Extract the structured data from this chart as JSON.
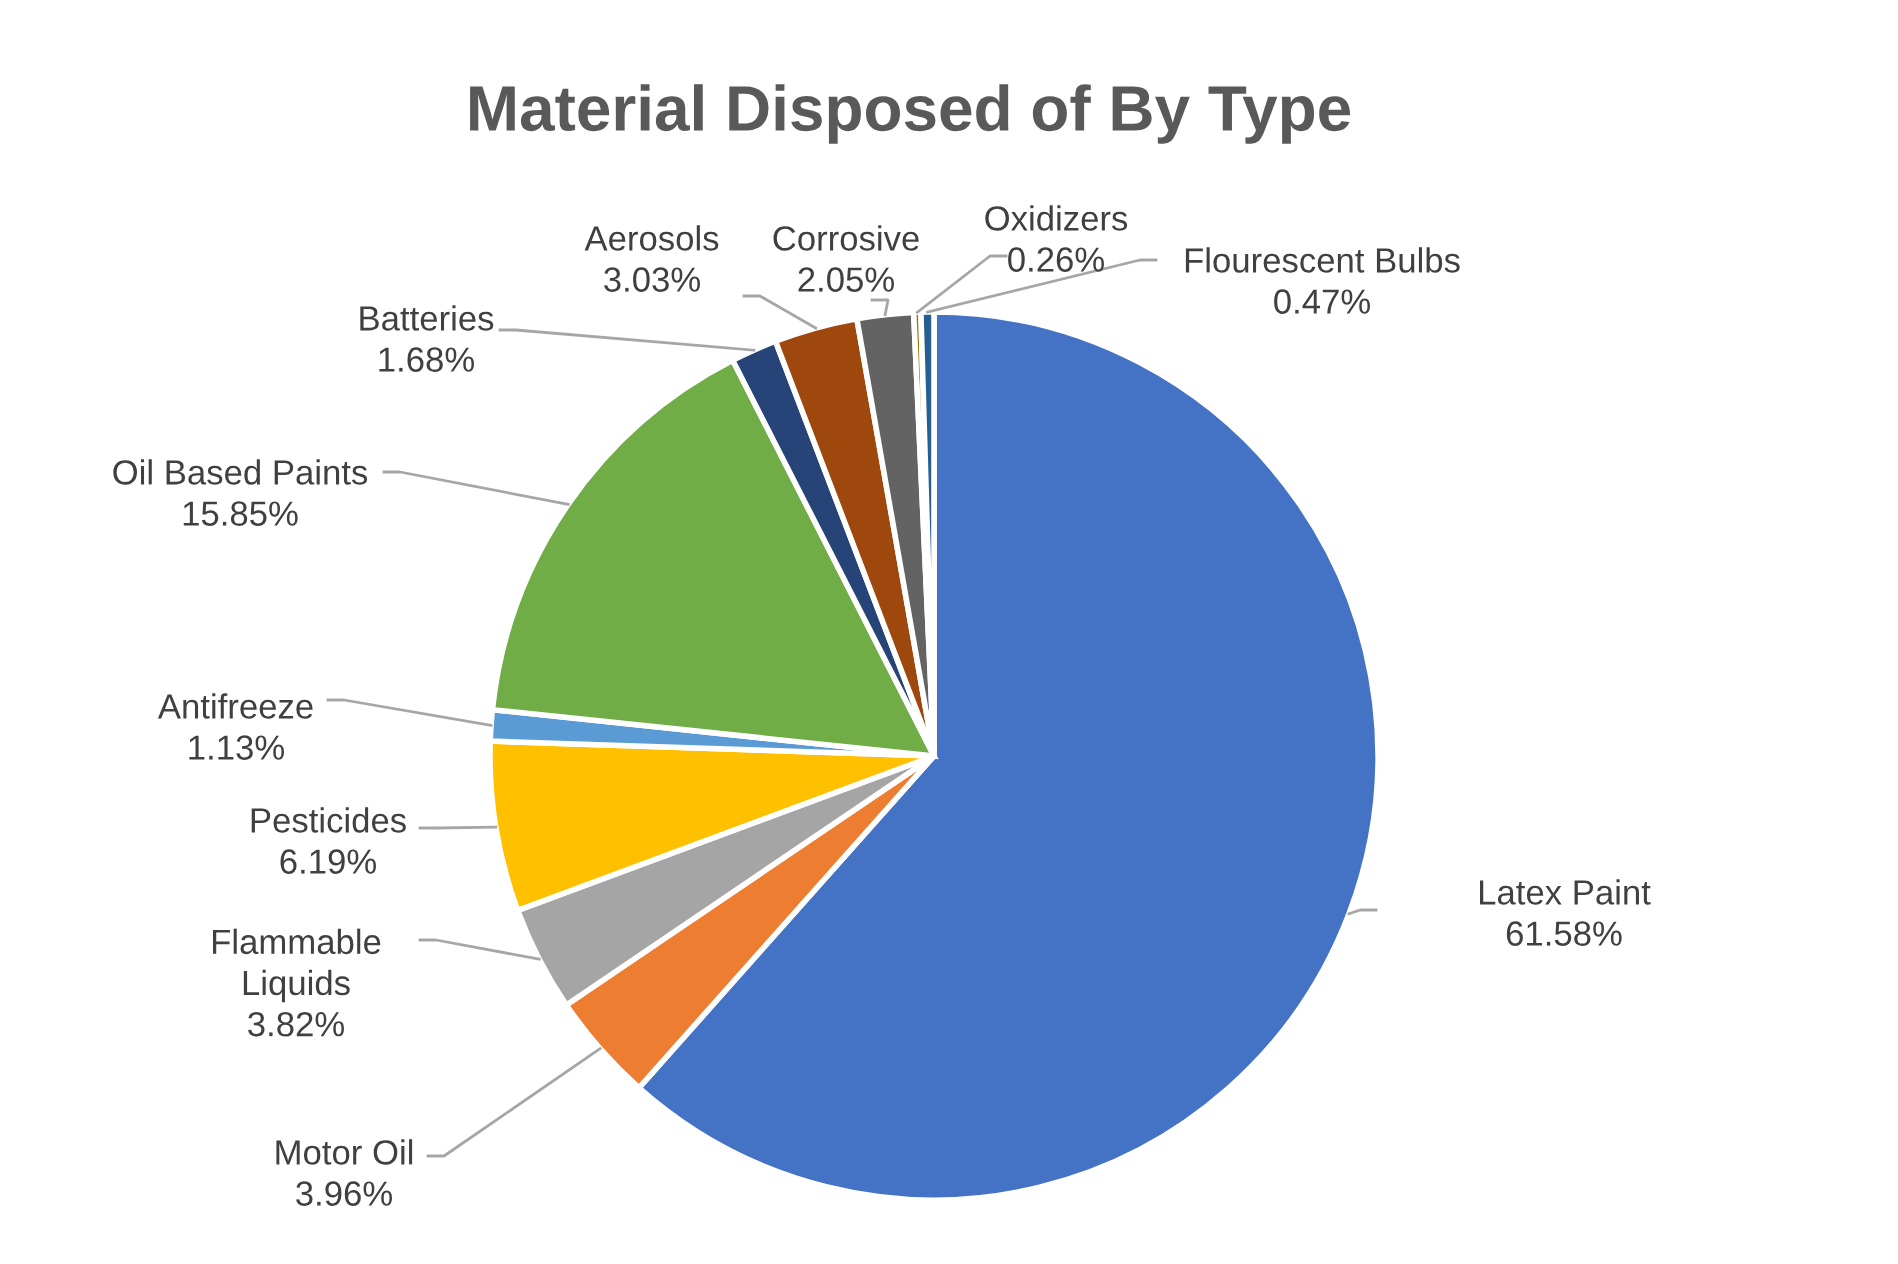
{
  "chart_data": {
    "type": "pie",
    "title": "Material Disposed of By Type",
    "categories": [
      "Latex Paint",
      "Motor Oil",
      "Flammable Liquids",
      "Pesticides",
      "Antifreeze",
      "Oil Based Paints",
      "Batteries",
      "Aerosols",
      "Corrosive",
      "Oxidizers",
      "Flourescent Bulbs"
    ],
    "values": [
      61.58,
      3.96,
      3.82,
      6.19,
      1.13,
      15.85,
      1.68,
      3.03,
      2.05,
      0.26,
      0.47
    ],
    "value_labels": [
      "61.58%",
      "3.96%",
      "3.82%",
      "6.19%",
      "1.13%",
      "15.85%",
      "1.68%",
      "3.03%",
      "2.05%",
      "0.26%",
      "0.47%"
    ],
    "colors": [
      "#4472c4",
      "#ed7d31",
      "#a5a5a5",
      "#ffc000",
      "#5b9bd5",
      "#70ad47",
      "#264478",
      "#9e480e",
      "#636363",
      "#997300",
      "#255e91"
    ]
  }
}
